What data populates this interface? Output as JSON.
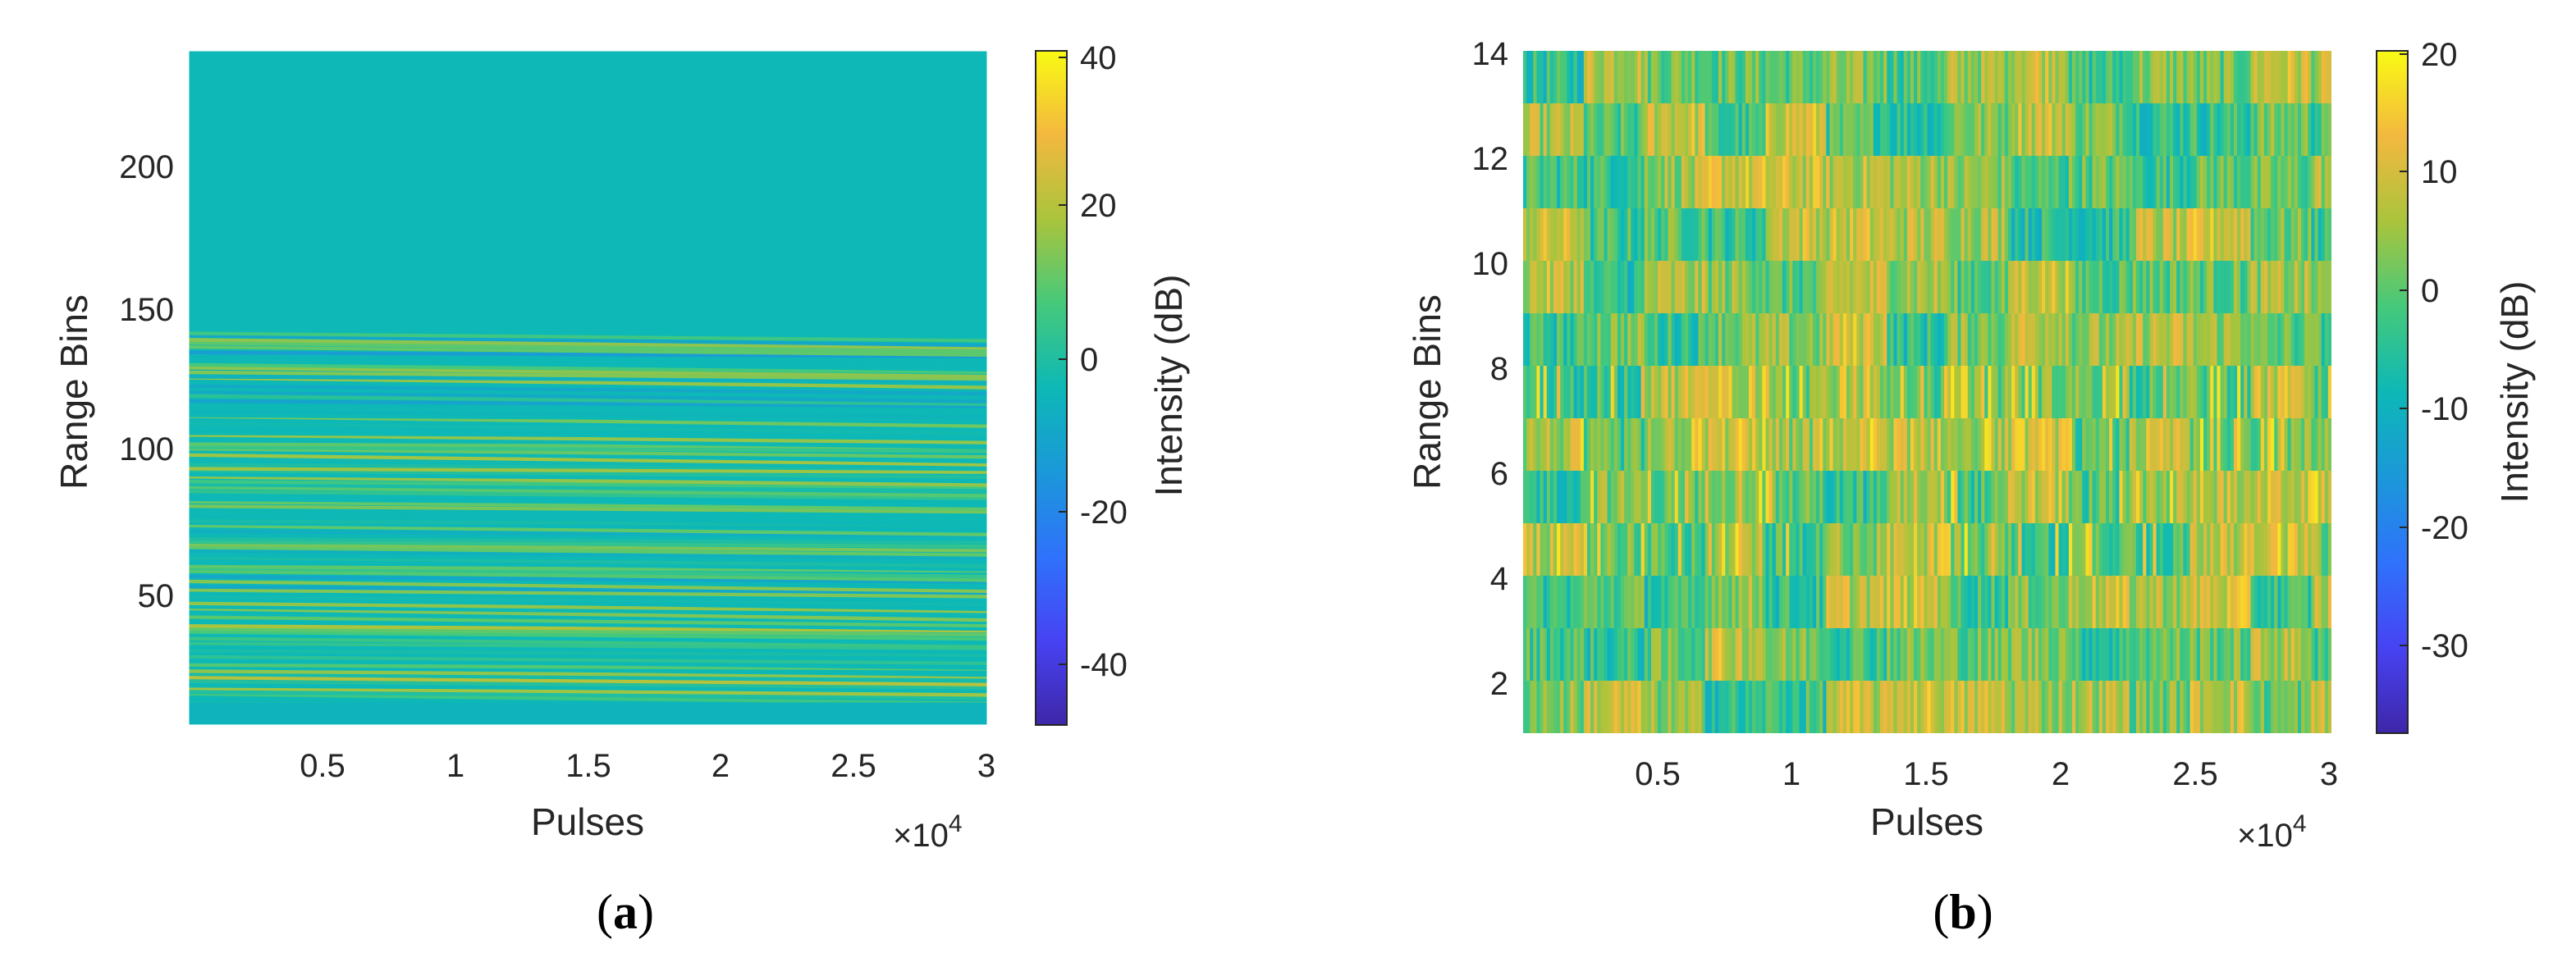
{
  "figure": {
    "panels": [
      {
        "caption_open": "(",
        "caption_letter": "a",
        "caption_close": ")"
      },
      {
        "caption_open": "(",
        "caption_letter": "b",
        "caption_close": ")"
      }
    ]
  },
  "chart_data": [
    {
      "type": "heatmap",
      "xlabel": "Pulses",
      "ylabel": "Range Bins",
      "x_exponent_label": "×10",
      "x_exponent_power": "4",
      "x_ticks": [
        "0.5",
        "1",
        "1.5",
        "2",
        "2.5",
        "3"
      ],
      "x_tick_values": [
        0.5,
        1,
        1.5,
        2,
        2.5,
        3
      ],
      "xlim": [
        0,
        3
      ],
      "y_ticks": [
        "50",
        "100",
        "150",
        "200"
      ],
      "y_tick_values": [
        50,
        100,
        150,
        200
      ],
      "ylim": [
        0,
        240
      ],
      "colorbar": {
        "label": "Intensity (dB)",
        "ticks": [
          "40",
          "20",
          "0",
          "-20",
          "-40"
        ],
        "tick_values": [
          40,
          20,
          0,
          -20,
          -40
        ],
        "range": [
          -50,
          42
        ],
        "colormap": "parula"
      },
      "description_values": {
        "background_db": 0,
        "banded_region_range_bins": [
          0,
          138
        ],
        "band_db_range": [
          -15,
          25
        ]
      }
    },
    {
      "type": "heatmap",
      "xlabel": "Pulses",
      "ylabel": "Range Bins",
      "x_exponent_label": "×10",
      "x_exponent_power": "4",
      "x_ticks": [
        "0.5",
        "1",
        "1.5",
        "2",
        "2.5",
        "3"
      ],
      "x_tick_values": [
        0.5,
        1,
        1.5,
        2,
        2.5,
        3
      ],
      "xlim": [
        0,
        3
      ],
      "y_ticks": [
        "2",
        "4",
        "6",
        "8",
        "10",
        "12",
        "14"
      ],
      "y_tick_values": [
        2,
        4,
        6,
        8,
        10,
        12,
        14
      ],
      "ylim": [
        1,
        14
      ],
      "rows": 13,
      "colorbar": {
        "label": "Intensity (dB)",
        "ticks": [
          "20",
          "10",
          "0",
          "-10",
          "-20",
          "-30"
        ],
        "tick_values": [
          20,
          10,
          0,
          -10,
          -20,
          -30
        ],
        "range": [
          -38,
          20
        ],
        "colormap": "parula"
      }
    }
  ]
}
